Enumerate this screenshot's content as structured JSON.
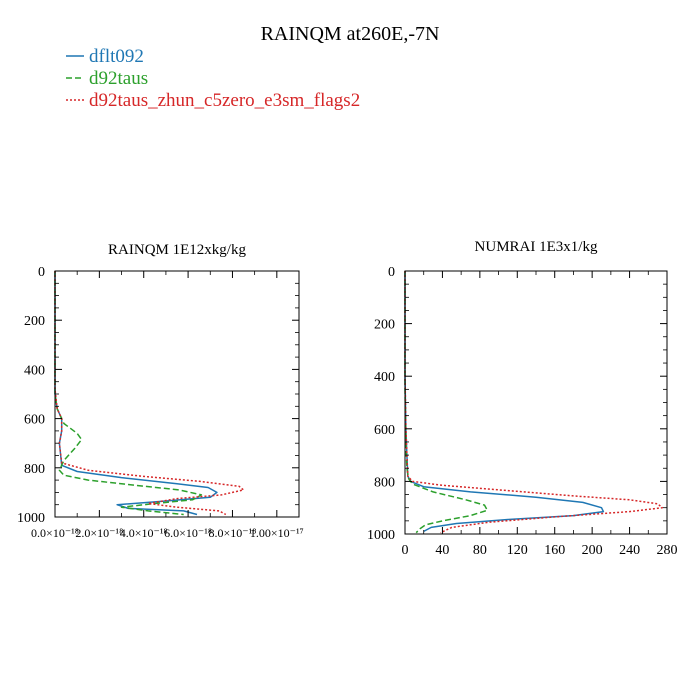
{
  "figure": {
    "title": "RAINQM at260E,-7N"
  },
  "legend": {
    "placement": "top-left",
    "entries": [
      {
        "label": "dflt092",
        "color": "#1f77b4",
        "dash": "solid"
      },
      {
        "label": "d92taus",
        "color": "#2ca02c",
        "dash": "dashed"
      },
      {
        "label": "d92taus_zhun_c5zero_e3sm_flags2",
        "color": "#d62728",
        "dash": "dotted"
      }
    ]
  },
  "chart_data": [
    {
      "type": "line",
      "title": "RAINQM  1E12xkg/kg",
      "xlabel": "",
      "ylabel": "",
      "xlim": [
        0,
        1.1e-17
      ],
      "ylim": [
        1000,
        0
      ],
      "y_inverted": true,
      "xticks": [
        {
          "v": 0,
          "label": "0.0×10⁻¹⁸"
        },
        {
          "v": 2e-18,
          "label": "2.0×10⁻¹⁸"
        },
        {
          "v": 4e-18,
          "label": "4.0×10⁻¹⁸"
        },
        {
          "v": 6e-18,
          "label": "6.0×10⁻¹⁸"
        },
        {
          "v": 8e-18,
          "label": "8.0×10⁻¹⁸"
        },
        {
          "v": 1e-17,
          "label": "1.00×10⁻¹⁷"
        }
      ],
      "yticks": [
        {
          "v": 0,
          "label": "0"
        },
        {
          "v": 200,
          "label": "200"
        },
        {
          "v": 400,
          "label": "400"
        },
        {
          "v": 600,
          "label": "600"
        },
        {
          "v": 800,
          "label": "800"
        },
        {
          "v": 1000,
          "label": "1000"
        }
      ],
      "series": [
        {
          "name": "dflt092",
          "color": "#1f77b4",
          "dash": "solid",
          "x": [
            0,
            0,
            1e-19,
            3e-19,
            3e-19,
            2e-19,
            3e-19,
            1e-18,
            3e-18,
            5.5e-18,
            6.9e-18,
            7.3e-18,
            7e-18,
            5e-18,
            2.8e-18,
            3.3e-18,
            5.8e-18,
            6.4e-18
          ],
          "y": [
            0,
            500,
            560,
            600,
            650,
            700,
            790,
            815,
            840,
            865,
            880,
            900,
            920,
            935,
            950,
            965,
            975,
            990
          ]
        },
        {
          "name": "d92taus",
          "color": "#2ca02c",
          "dash": "dashed",
          "x": [
            0,
            0,
            1e-19,
            4e-19,
            1e-18,
            1.2e-18,
            9e-19,
            4e-19,
            2e-19,
            4e-19,
            1.5e-18,
            3.5e-18,
            5.6e-18,
            6.6e-18,
            6.2e-18,
            4.5e-18,
            3e-18,
            4.2e-18,
            5.8e-18
          ],
          "y": [
            0,
            500,
            560,
            620,
            660,
            685,
            720,
            770,
            810,
            830,
            850,
            870,
            890,
            910,
            930,
            945,
            960,
            975,
            990
          ]
        },
        {
          "name": "d92taus_zhun_c5zero_e3sm_flags2",
          "color": "#d62728",
          "dash": "dotted",
          "x": [
            0,
            0,
            1e-19,
            3e-19,
            3e-19,
            2e-19,
            3e-19,
            1.5e-18,
            4e-18,
            6.5e-18,
            8.3e-18,
            8.5e-18,
            7.5e-18,
            5.5e-18,
            4.2e-18,
            5.5e-18,
            7.4e-18,
            7.7e-18
          ],
          "y": [
            0,
            480,
            560,
            600,
            650,
            700,
            780,
            810,
            835,
            855,
            875,
            890,
            910,
            925,
            945,
            960,
            975,
            990
          ]
        }
      ]
    },
    {
      "type": "line",
      "title": "NUMRAI  1E3x1/kg",
      "xlabel": "",
      "ylabel": "",
      "xlim": [
        0,
        280
      ],
      "ylim": [
        1000,
        0
      ],
      "y_inverted": true,
      "xticks": [
        {
          "v": 0,
          "label": "0"
        },
        {
          "v": 40,
          "label": "40"
        },
        {
          "v": 80,
          "label": "80"
        },
        {
          "v": 120,
          "label": "120"
        },
        {
          "v": 160,
          "label": "160"
        },
        {
          "v": 200,
          "label": "200"
        },
        {
          "v": 240,
          "label": "240"
        },
        {
          "v": 280,
          "label": "280"
        }
      ],
      "yticks": [
        {
          "v": 0,
          "label": "0"
        },
        {
          "v": 200,
          "label": "200"
        },
        {
          "v": 400,
          "label": "400"
        },
        {
          "v": 600,
          "label": "600"
        },
        {
          "v": 800,
          "label": "800"
        },
        {
          "v": 1000,
          "label": "1000"
        }
      ],
      "series": [
        {
          "name": "dflt092",
          "color": "#1f77b4",
          "dash": "solid",
          "x": [
            0,
            0,
            1,
            2,
            3,
            6,
            20,
            70,
            140,
            190,
            210,
            212,
            180,
            110,
            55,
            28,
            20
          ],
          "y": [
            0,
            400,
            600,
            700,
            780,
            800,
            820,
            840,
            860,
            880,
            900,
            915,
            930,
            945,
            960,
            975,
            990
          ]
        },
        {
          "name": "d92taus",
          "color": "#2ca02c",
          "dash": "dashed",
          "x": [
            0,
            0,
            1,
            2,
            4,
            8,
            30,
            65,
            85,
            88,
            70,
            40,
            22,
            16,
            12
          ],
          "y": [
            0,
            450,
            650,
            750,
            790,
            810,
            840,
            870,
            890,
            910,
            930,
            950,
            965,
            980,
            995
          ]
        },
        {
          "name": "d92taus_zhun_c5zero_e3sm_flags2",
          "color": "#d62728",
          "dash": "dotted",
          "x": [
            0,
            0,
            1,
            2,
            3,
            8,
            40,
            110,
            180,
            240,
            270,
            275,
            240,
            160,
            90,
            50,
            38
          ],
          "y": [
            0,
            400,
            600,
            700,
            780,
            800,
            815,
            835,
            855,
            870,
            885,
            900,
            915,
            935,
            955,
            975,
            995
          ]
        }
      ]
    }
  ]
}
